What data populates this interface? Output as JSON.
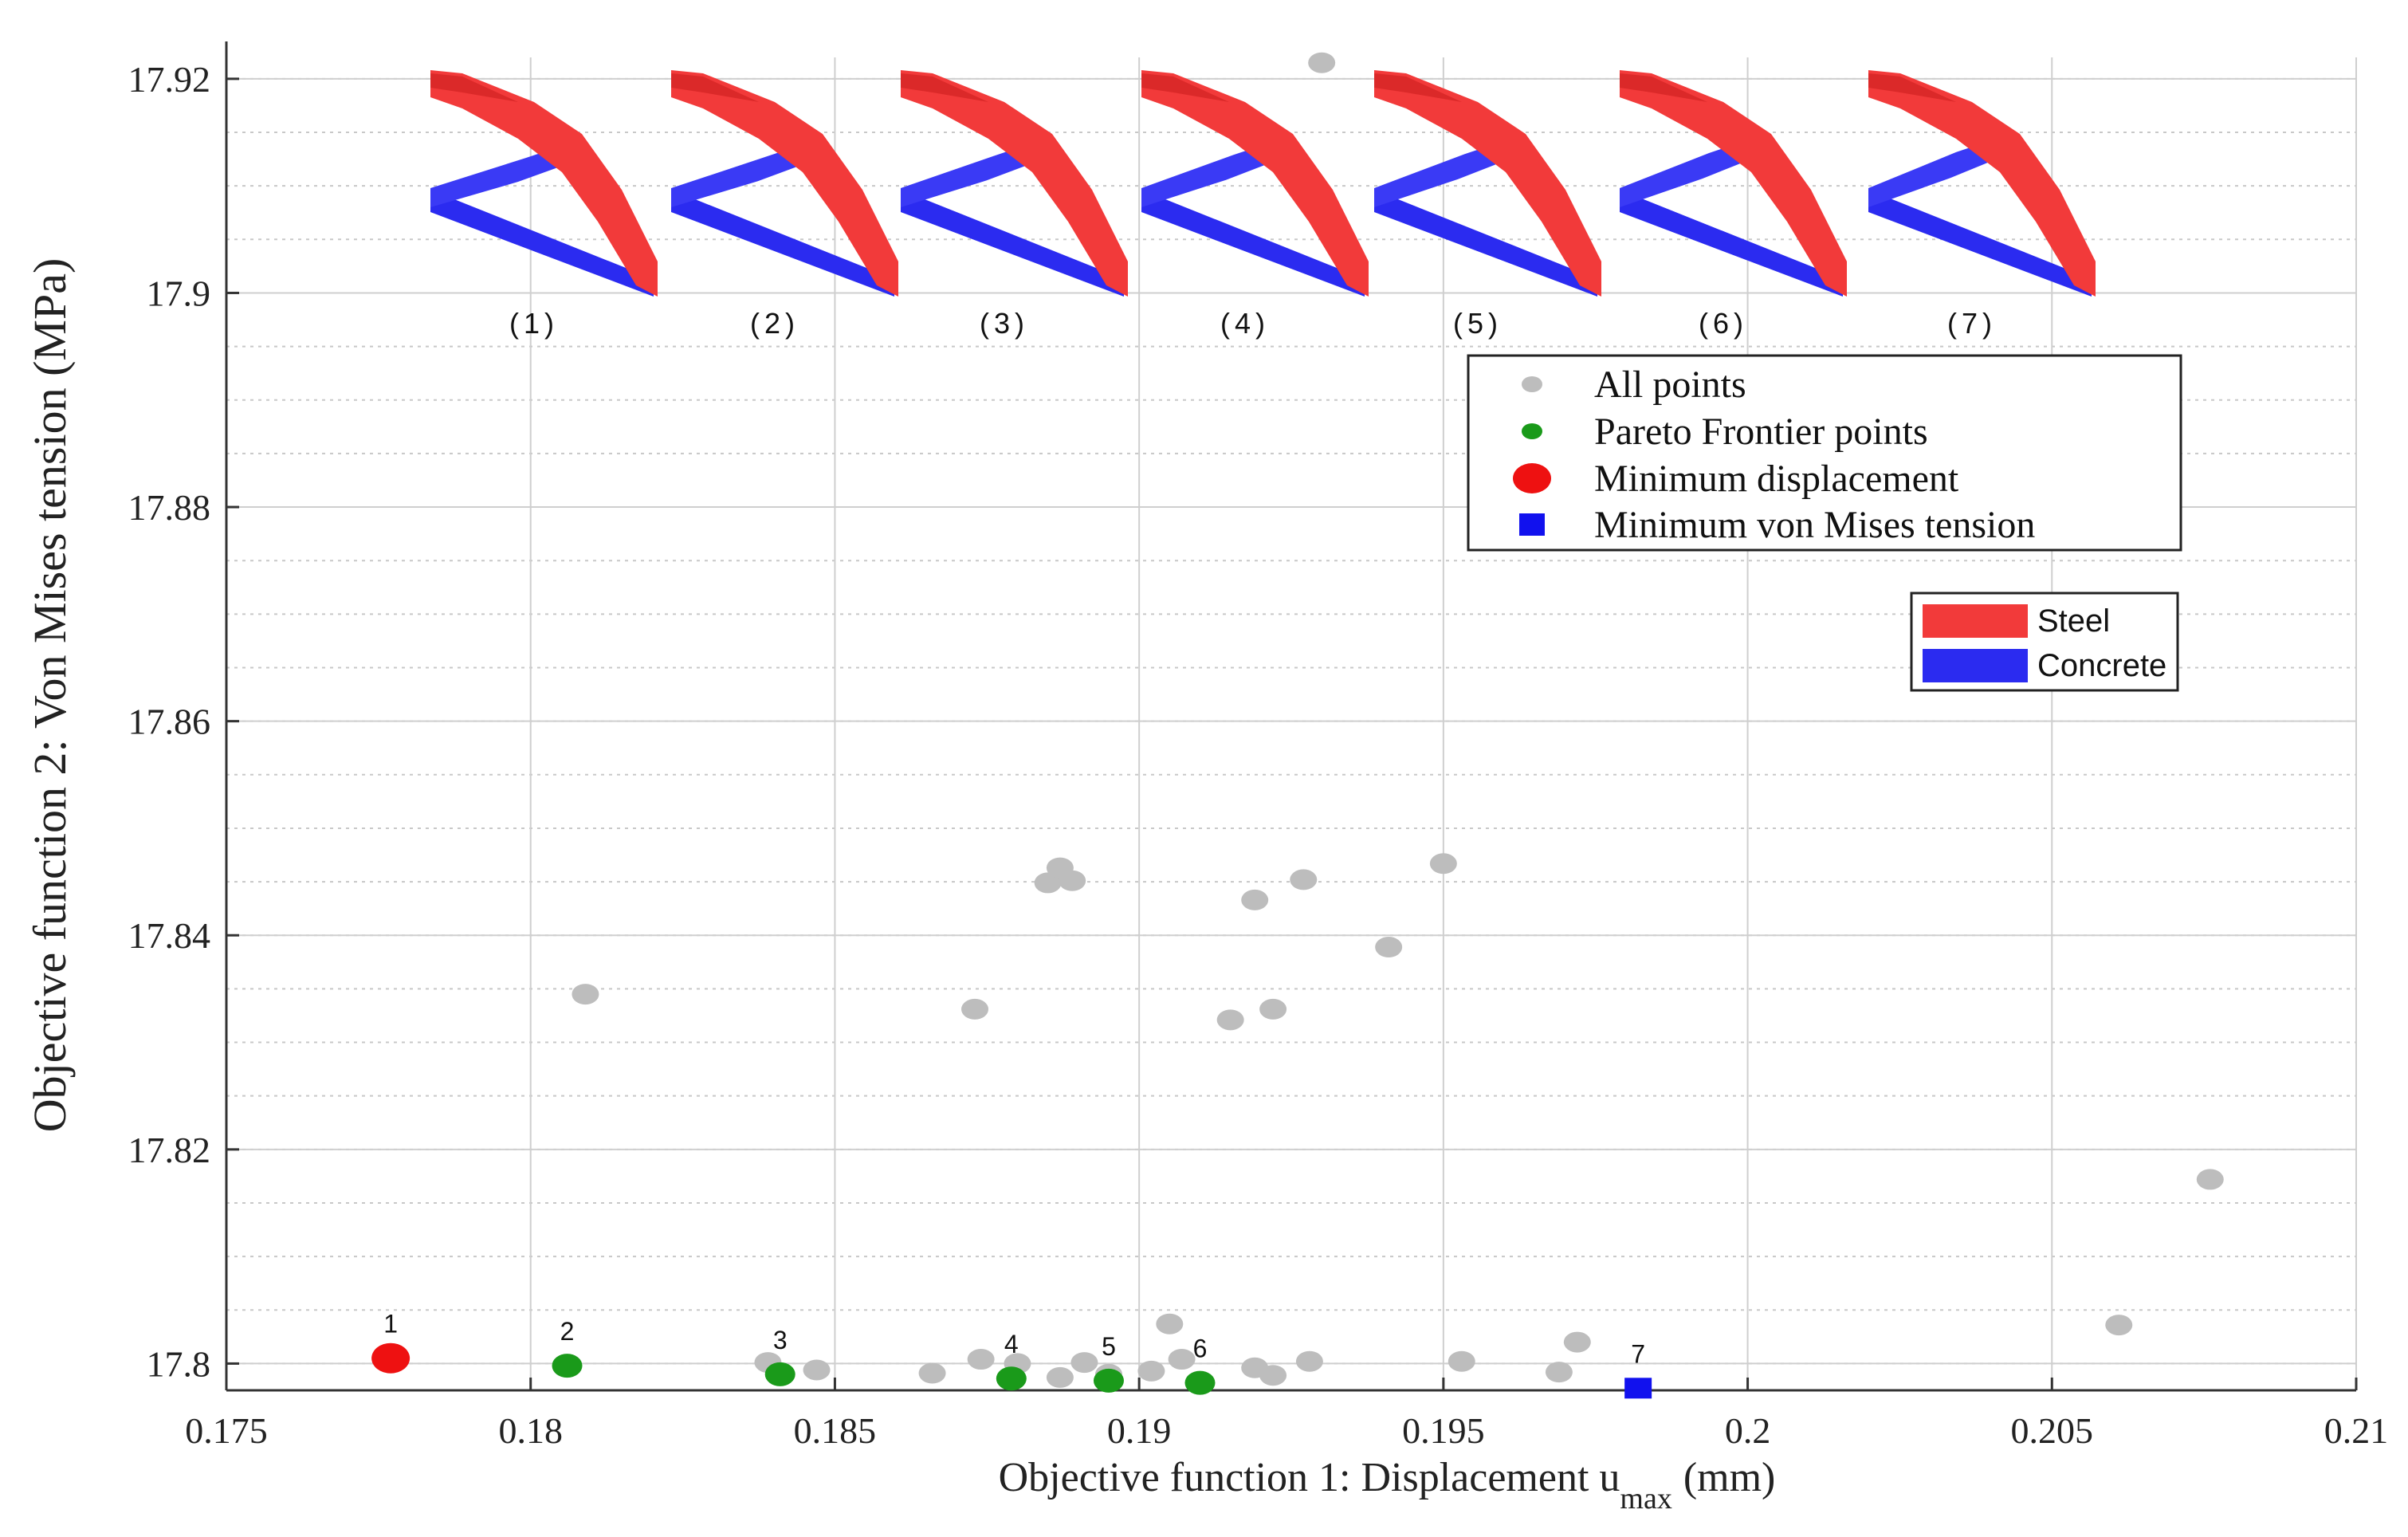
{
  "chart_data": {
    "type": "scatter",
    "xlabel_main": "Objective function 1: Displacement u",
    "xlabel_sub": "max",
    "xlabel_unit": "(mm)",
    "ylabel": "Objective function 2: Von Mises tension (MPa)",
    "xlim": [
      0.175,
      0.21
    ],
    "ylim": [
      17.7975,
      17.922
    ],
    "x_ticks": [
      {
        "value": 0.175,
        "label": "0.175"
      },
      {
        "value": 0.18,
        "label": "0.18"
      },
      {
        "value": 0.185,
        "label": "0.185"
      },
      {
        "value": 0.19,
        "label": "0.19"
      },
      {
        "value": 0.195,
        "label": "0.195"
      },
      {
        "value": 0.2,
        "label": "0.2"
      },
      {
        "value": 0.205,
        "label": "0.205"
      },
      {
        "value": 0.21,
        "label": "0.21"
      }
    ],
    "y_ticks": [
      {
        "value": 17.8,
        "label": "17.8"
      },
      {
        "value": 17.82,
        "label": "17.82"
      },
      {
        "value": 17.84,
        "label": "17.84"
      },
      {
        "value": 17.86,
        "label": "17.86"
      },
      {
        "value": 17.88,
        "label": "17.88"
      },
      {
        "value": 17.9,
        "label": "17.9"
      },
      {
        "value": 17.92,
        "label": "17.92"
      }
    ],
    "grid": true,
    "legend_position": "upper-right",
    "series": [
      {
        "name": "All points",
        "color": "#bdbdbd",
        "marker": "circle",
        "points": [
          [
            0.1809,
            17.8345
          ],
          [
            0.1873,
            17.8331
          ],
          [
            0.1885,
            17.8449
          ],
          [
            0.1887,
            17.8463
          ],
          [
            0.1889,
            17.8451
          ],
          [
            0.1919,
            17.8433
          ],
          [
            0.1927,
            17.8452
          ],
          [
            0.1915,
            17.8321
          ],
          [
            0.1922,
            17.8331
          ],
          [
            0.1941,
            17.8389
          ],
          [
            0.195,
            17.8467
          ],
          [
            0.193,
            17.9215
          ],
          [
            0.2076,
            17.8172
          ],
          [
            0.2061,
            17.8036
          ],
          [
            0.1905,
            17.8037
          ],
          [
            0.1972,
            17.802
          ],
          [
            0.1969,
            17.7992
          ],
          [
            0.1953,
            17.8002
          ],
          [
            0.1928,
            17.8002
          ],
          [
            0.1919,
            17.7996
          ],
          [
            0.1922,
            17.7989
          ],
          [
            0.1907,
            17.8004
          ],
          [
            0.1902,
            17.7993
          ],
          [
            0.1891,
            17.8001
          ],
          [
            0.1887,
            17.7987
          ],
          [
            0.188,
            17.8
          ],
          [
            0.1874,
            17.8004
          ],
          [
            0.1866,
            17.7991
          ],
          [
            0.1839,
            17.8001
          ],
          [
            0.1847,
            17.7994
          ],
          [
            0.1895,
            17.799
          ]
        ]
      },
      {
        "name": "Pareto Frontier points",
        "color": "#1a9a1a",
        "marker": "circle",
        "points": [
          [
            0.1806,
            17.7998
          ],
          [
            0.1841,
            17.799
          ],
          [
            0.1879,
            17.7986
          ],
          [
            0.1895,
            17.7984
          ],
          [
            0.191,
            17.7982
          ]
        ],
        "point_labels": [
          "2",
          "3",
          "4",
          "5",
          "6"
        ]
      },
      {
        "name": "Minimum displacement",
        "color": "#ee1111",
        "marker": "circle-large",
        "points": [
          [
            0.1777,
            17.8005
          ]
        ],
        "point_labels": [
          "1"
        ]
      },
      {
        "name": "Minimum von Mises tension",
        "color": "#1111ee",
        "marker": "square",
        "points": [
          [
            0.1982,
            17.7977
          ]
        ],
        "point_labels": [
          "7"
        ]
      }
    ],
    "material_legend": [
      {
        "label": "Steel",
        "color": "#f23a3a"
      },
      {
        "label": "Concrete",
        "color": "#2b2bf0"
      }
    ],
    "insets": [
      "(1)",
      "(2)",
      "(3)",
      "(4)",
      "(5)",
      "(6)",
      "(7)"
    ]
  }
}
